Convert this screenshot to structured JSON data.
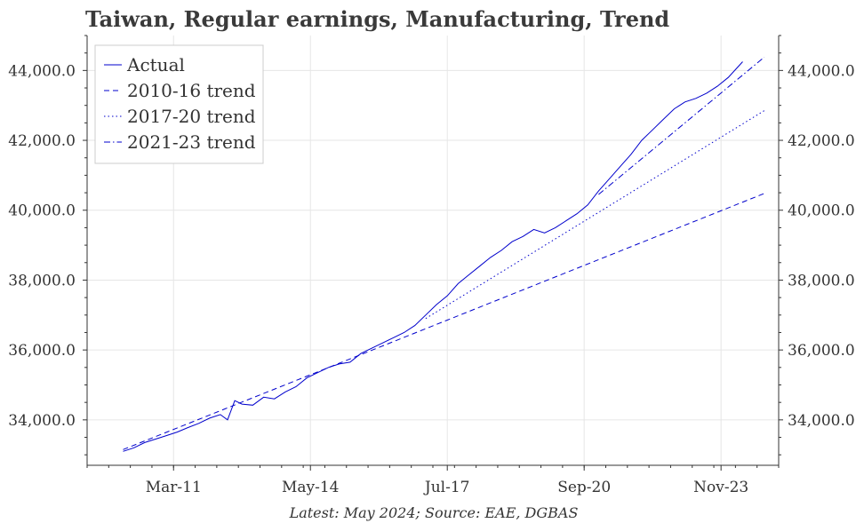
{
  "chart_data": {
    "type": "line",
    "title": "Taiwan, Regular earnings, Manufacturing, Trend",
    "caption": "Latest: May 2024; Source: EAE, DGBAS",
    "xlabel": "",
    "ylabel": "",
    "x_ticks": [
      "Mar-11",
      "May-14",
      "Jul-17",
      "Sep-20",
      "Nov-23"
    ],
    "y_ticks": [
      "34,000.0",
      "36,000.0",
      "38,000.0",
      "40,000.0",
      "42,000.0",
      "44,000.0"
    ],
    "y_tick_values": [
      34000,
      36000,
      38000,
      40000,
      42000,
      44000
    ],
    "ylim": [
      32700,
      45000
    ],
    "xlim": [
      "2009-03",
      "2025-03"
    ],
    "grid": true,
    "legend_position": "top-left",
    "colors": {
      "series": "#0000cc",
      "grid": "#e6e6e6",
      "text": "#333333"
    },
    "series": [
      {
        "name": "Actual",
        "style": "solid",
        "points": [
          [
            "2010-01",
            33100
          ],
          [
            "2010-04",
            33200
          ],
          [
            "2010-07",
            33350
          ],
          [
            "2010-10",
            33450
          ],
          [
            "2011-01",
            33550
          ],
          [
            "2011-04",
            33650
          ],
          [
            "2011-07",
            33780
          ],
          [
            "2011-10",
            33900
          ],
          [
            "2012-01",
            34050
          ],
          [
            "2012-04",
            34150
          ],
          [
            "2012-06",
            34000
          ],
          [
            "2012-08",
            34550
          ],
          [
            "2012-10",
            34450
          ],
          [
            "2013-01",
            34420
          ],
          [
            "2013-04",
            34650
          ],
          [
            "2013-07",
            34600
          ],
          [
            "2013-10",
            34800
          ],
          [
            "2014-01",
            34950
          ],
          [
            "2014-04",
            35200
          ],
          [
            "2014-07",
            35350
          ],
          [
            "2014-10",
            35500
          ],
          [
            "2015-01",
            35600
          ],
          [
            "2015-04",
            35650
          ],
          [
            "2015-07",
            35900
          ],
          [
            "2015-10",
            36050
          ],
          [
            "2016-01",
            36200
          ],
          [
            "2016-04",
            36350
          ],
          [
            "2016-07",
            36500
          ],
          [
            "2016-10",
            36700
          ],
          [
            "2017-01",
            37000
          ],
          [
            "2017-04",
            37300
          ],
          [
            "2017-07",
            37550
          ],
          [
            "2017-10",
            37900
          ],
          [
            "2018-01",
            38150
          ],
          [
            "2018-04",
            38400
          ],
          [
            "2018-07",
            38650
          ],
          [
            "2018-10",
            38850
          ],
          [
            "2019-01",
            39100
          ],
          [
            "2019-04",
            39250
          ],
          [
            "2019-07",
            39450
          ],
          [
            "2019-10",
            39350
          ],
          [
            "2020-01",
            39500
          ],
          [
            "2020-04",
            39700
          ],
          [
            "2020-07",
            39900
          ],
          [
            "2020-10",
            40150
          ],
          [
            "2021-01",
            40550
          ],
          [
            "2021-04",
            40900
          ],
          [
            "2021-07",
            41250
          ],
          [
            "2021-10",
            41600
          ],
          [
            "2022-01",
            42000
          ],
          [
            "2022-04",
            42300
          ],
          [
            "2022-07",
            42600
          ],
          [
            "2022-10",
            42900
          ],
          [
            "2023-01",
            43100
          ],
          [
            "2023-04",
            43200
          ],
          [
            "2023-07",
            43350
          ],
          [
            "2023-10",
            43550
          ],
          [
            "2024-01",
            43800
          ],
          [
            "2024-05",
            44250
          ]
        ]
      },
      {
        "name": "2010-16 trend",
        "style": "dashed",
        "points": [
          [
            "2010-01",
            33150
          ],
          [
            "2024-11",
            40480
          ]
        ]
      },
      {
        "name": "2017-20 trend",
        "style": "dotted",
        "points": [
          [
            "2017-01",
            36900
          ],
          [
            "2024-11",
            42850
          ]
        ]
      },
      {
        "name": "2021-23 trend",
        "style": "dashdot",
        "points": [
          [
            "2021-01",
            40450
          ],
          [
            "2024-11",
            44380
          ]
        ]
      }
    ]
  }
}
